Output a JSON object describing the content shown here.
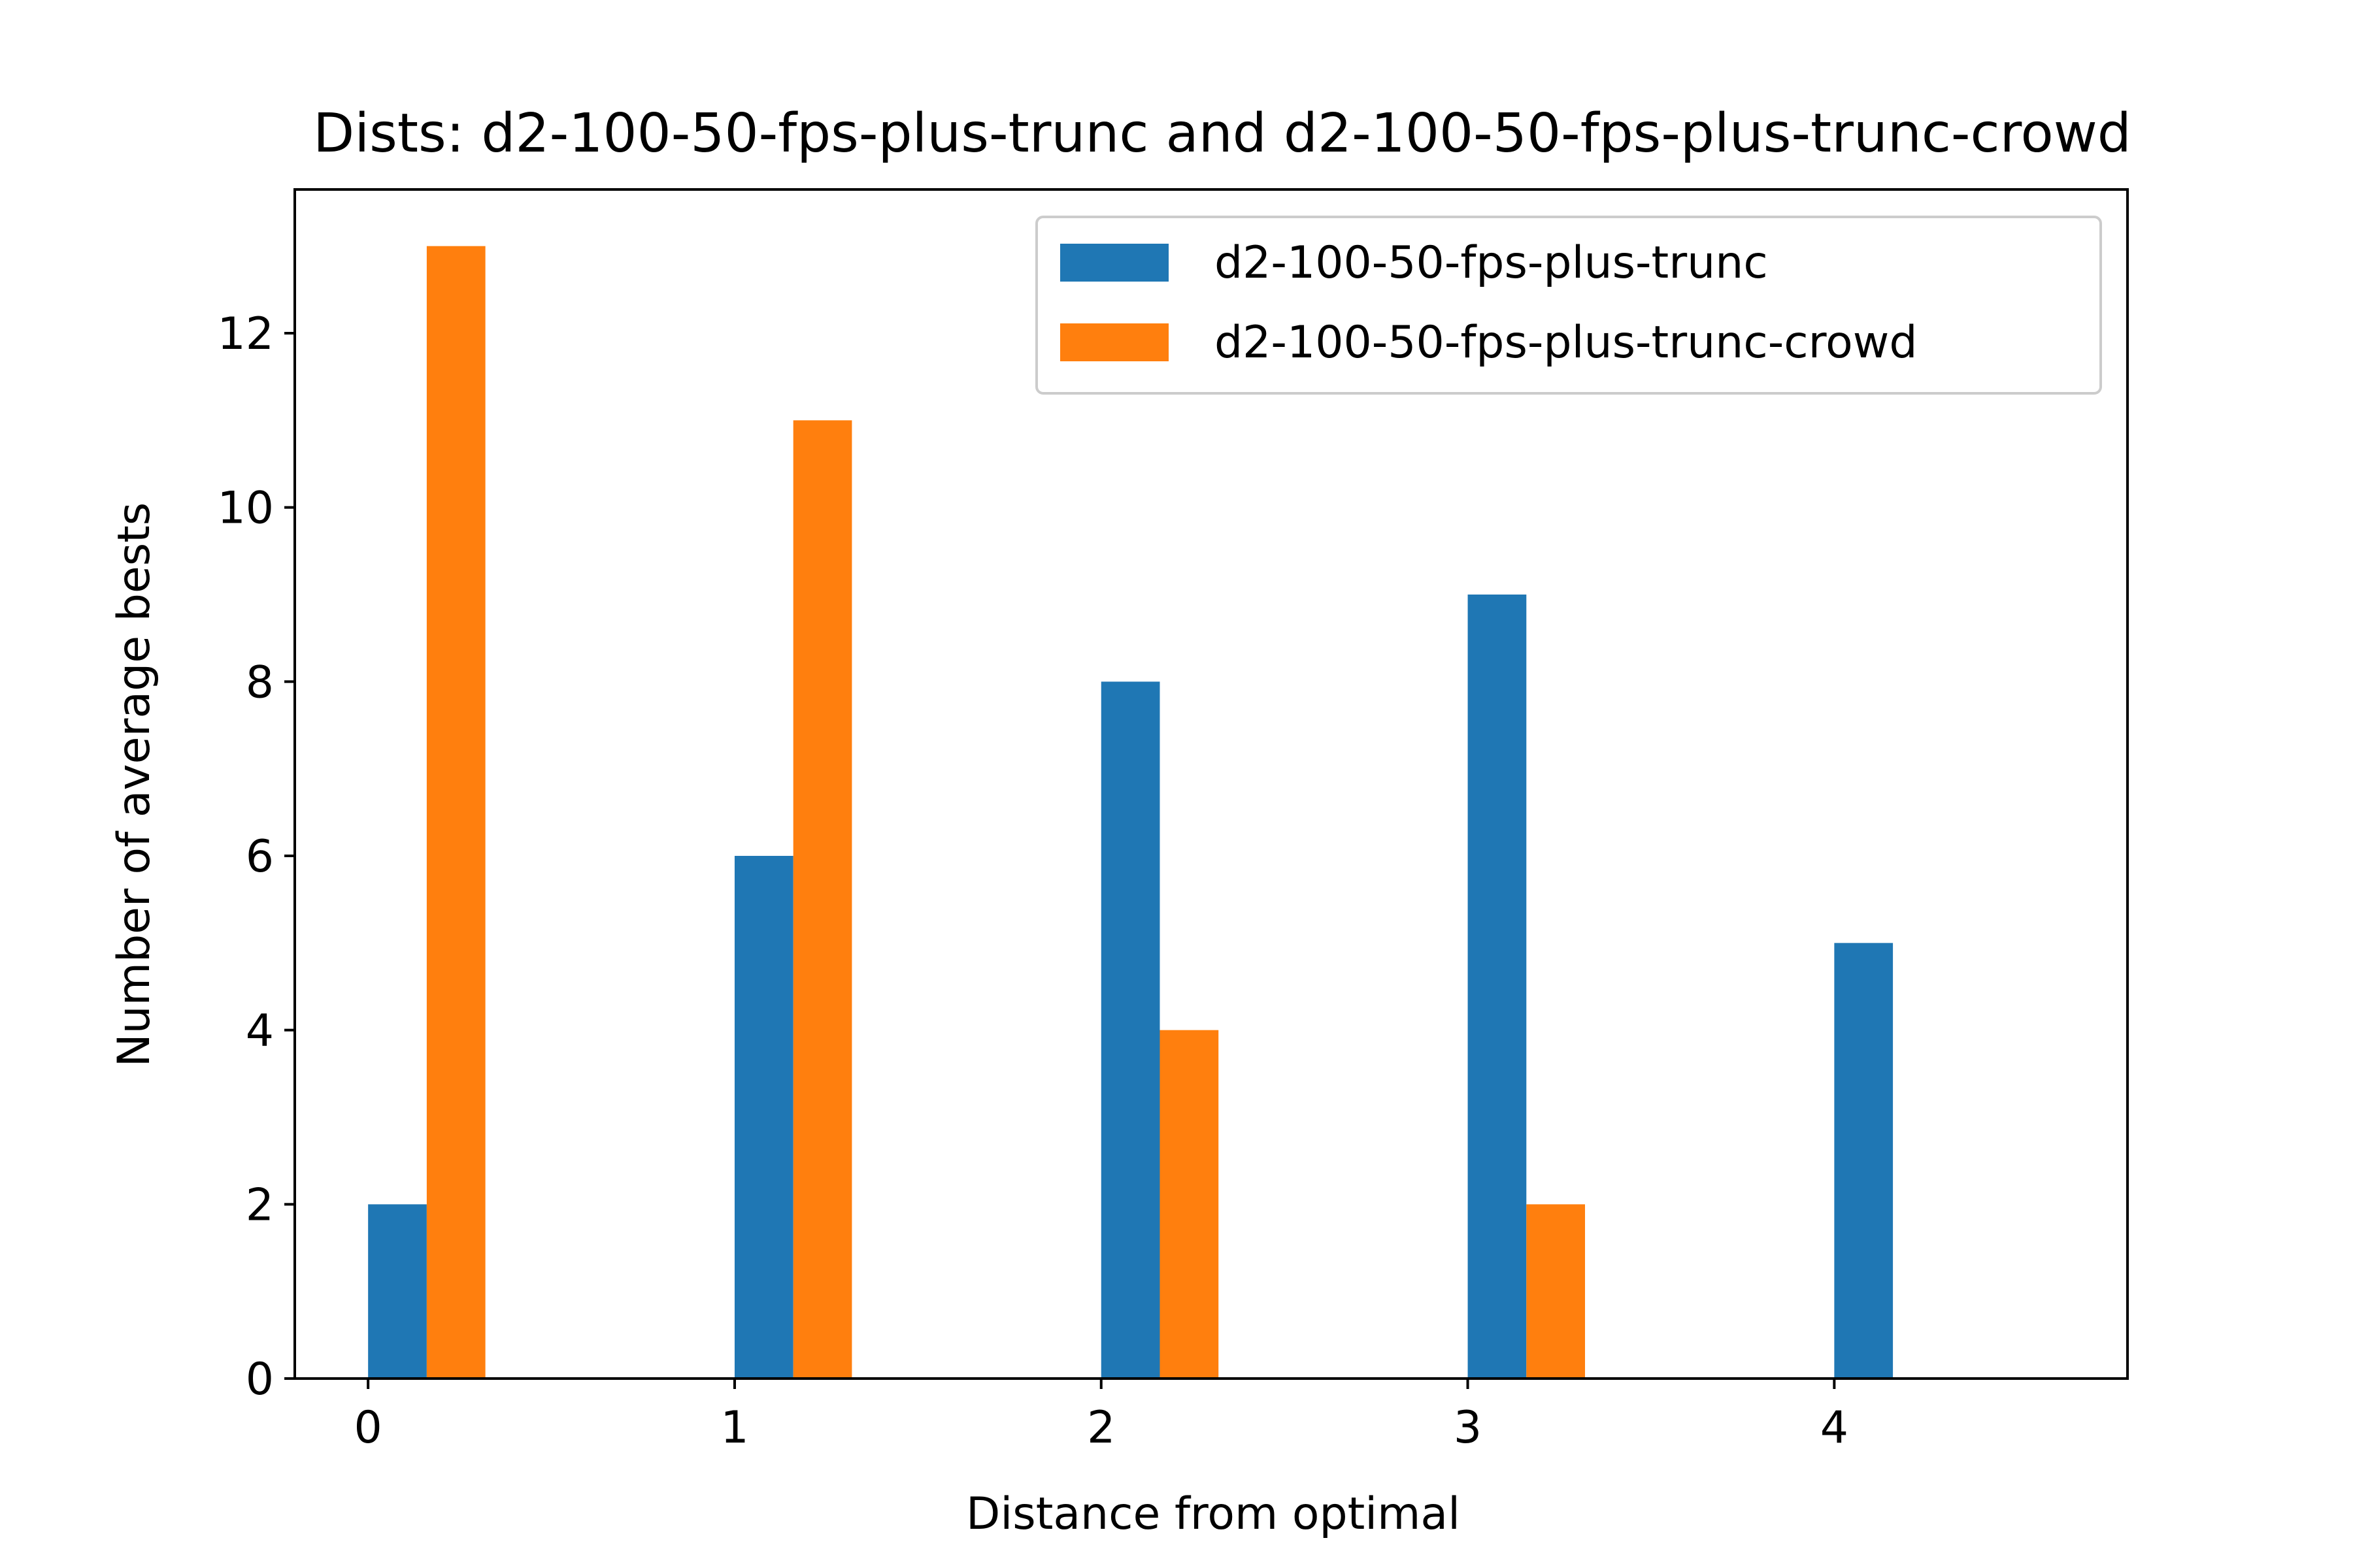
{
  "chart_data": {
    "type": "bar",
    "title": "Dists: d2-100-50-fps-plus-trunc and d2-100-50-fps-plus-trunc-crowd",
    "xlabel": "Distance from optimal",
    "ylabel": "Number of average bests",
    "x_ticks": [
      "0",
      "1",
      "2",
      "3",
      "4"
    ],
    "y_ticks": [
      "0",
      "2",
      "4",
      "6",
      "8",
      "10",
      "12"
    ],
    "xlim": [
      -0.2,
      4.8
    ],
    "ylim": [
      0,
      13.65
    ],
    "grid": false,
    "legend_position": "upper right",
    "series": [
      {
        "name": "d2-100-50-fps-plus-trunc",
        "color": "#1f77b4",
        "x": [
          0,
          1,
          2,
          3,
          4
        ],
        "values": [
          2,
          6,
          8,
          9,
          5
        ]
      },
      {
        "name": "d2-100-50-fps-plus-trunc-crowd",
        "color": "#ff7f0e",
        "x": [
          0,
          1,
          2,
          3
        ],
        "values": [
          13,
          11,
          4,
          2
        ]
      }
    ]
  }
}
